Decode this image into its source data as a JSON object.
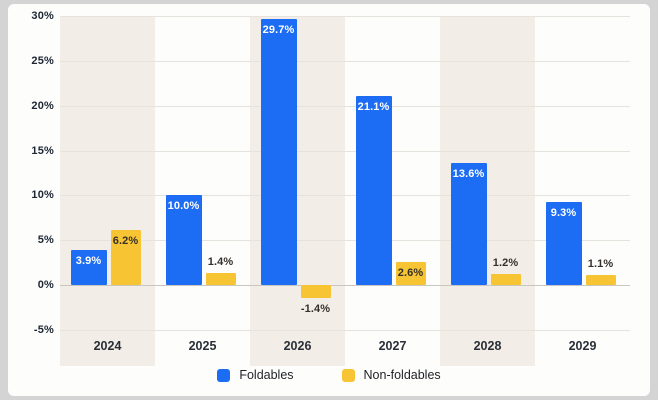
{
  "chart_data": {
    "type": "bar",
    "categories": [
      "2024",
      "2025",
      "2026",
      "2027",
      "2028",
      "2029"
    ],
    "series": [
      {
        "name": "Foldables",
        "color": "#1c6cf4",
        "values": [
          3.9,
          10.0,
          29.7,
          21.1,
          13.6,
          9.3
        ],
        "labels": [
          "3.9%",
          "10.0%",
          "29.7%",
          "21.1%",
          "13.6%",
          "9.3%"
        ]
      },
      {
        "name": "Non-foldables",
        "color": "#f7c433",
        "values": [
          6.2,
          1.4,
          -1.4,
          2.6,
          1.2,
          1.1
        ],
        "labels": [
          "6.2%",
          "1.4%",
          "-1.4%",
          "2.6%",
          "1.2%",
          "1.1%"
        ]
      }
    ],
    "title": "",
    "xlabel": "",
    "ylabel": "",
    "ylim": [
      -5,
      30
    ],
    "yticks": [
      {
        "v": 30,
        "label": "30%"
      },
      {
        "v": 25,
        "label": "25%"
      },
      {
        "v": 20,
        "label": "20%"
      },
      {
        "v": 15,
        "label": "15%"
      },
      {
        "v": 10,
        "label": "10%"
      },
      {
        "v": 5,
        "label": "5%"
      },
      {
        "v": 0,
        "label": "0%"
      },
      {
        "v": -5,
        "label": "-5%"
      }
    ],
    "grid": true,
    "legend_position": "bottom",
    "band_color": "#f2eee7",
    "background_color": "#fdfdfc"
  },
  "legend": {
    "items": [
      {
        "label": "Foldables",
        "color": "#1c6cf4"
      },
      {
        "label": "Non-foldables",
        "color": "#f7c433"
      }
    ]
  },
  "colors": {
    "blue": "#1c6cf4",
    "yellow": "#f7c433",
    "grid": "#e6e3dd",
    "text_dark": "#2a2f37",
    "label_on_blue": "#ffffff",
    "label_on_yellow": "#34302a",
    "outer_background": "#d4d4d5"
  }
}
